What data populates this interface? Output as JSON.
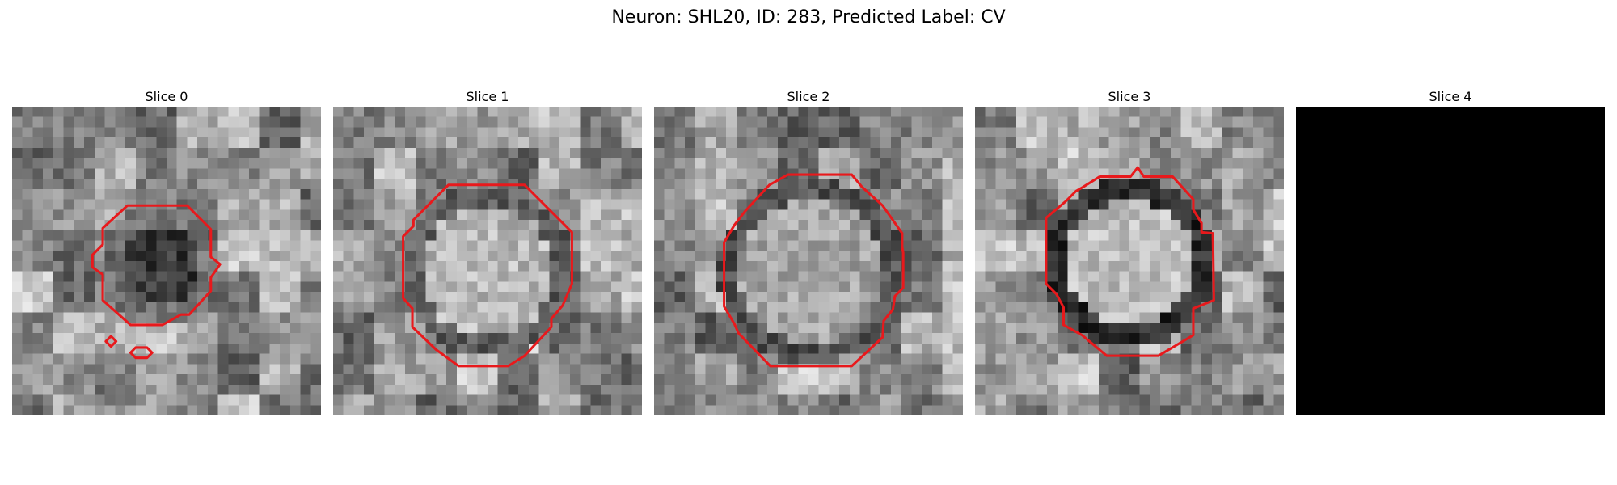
{
  "figure": {
    "title": "Neuron: SHL20, ID: 283, Predicted Label: CV"
  },
  "panels": [
    {
      "title": "Slice 0"
    },
    {
      "title": "Slice 1"
    },
    {
      "title": "Slice 2"
    },
    {
      "title": "Slice 3"
    },
    {
      "title": "Slice 4"
    }
  ],
  "colors": {
    "contour": "#e8191c",
    "empty_slice": "#000000",
    "background": "#ffffff"
  }
}
